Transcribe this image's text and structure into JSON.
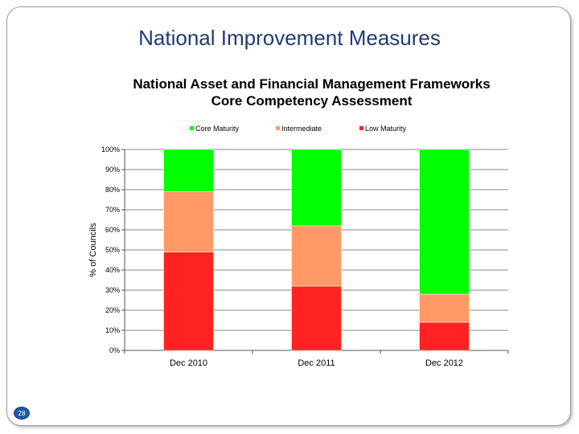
{
  "slide": {
    "title": "National Improvement Measures",
    "page_number": "28"
  },
  "colors": {
    "core": "#00ff00",
    "intermediate": "#ff9966",
    "low": "#ff2222",
    "title": "#1f3b73"
  },
  "chart_data": {
    "type": "bar",
    "stacked": true,
    "title": "National Asset and Financial Management Frameworks\nCore Competency Assessment",
    "title_lines": [
      "National Asset and Financial Management Frameworks",
      "Core Competency Assessment"
    ],
    "ylabel": "% of Councils",
    "xlabel": "",
    "ylim": [
      0,
      100
    ],
    "yticks": [
      "0%",
      "10%",
      "20%",
      "30%",
      "40%",
      "50%",
      "60%",
      "70%",
      "80%",
      "90%",
      "100%"
    ],
    "categories": [
      "Dec 2010",
      "Dec 2011",
      "Dec 2012"
    ],
    "series": [
      {
        "name": "Low Maturity",
        "color": "#ff2222",
        "values": [
          49,
          32,
          14
        ]
      },
      {
        "name": "Intermediate",
        "color": "#ff9966",
        "values": [
          30,
          30,
          14
        ]
      },
      {
        "name": "Core Maturity",
        "color": "#00ff00",
        "values": [
          21,
          38,
          72
        ]
      }
    ],
    "legend": [
      "Core Maturity",
      "Intermediate",
      "Low Maturity"
    ],
    "legend_position": "top",
    "grid": true
  }
}
